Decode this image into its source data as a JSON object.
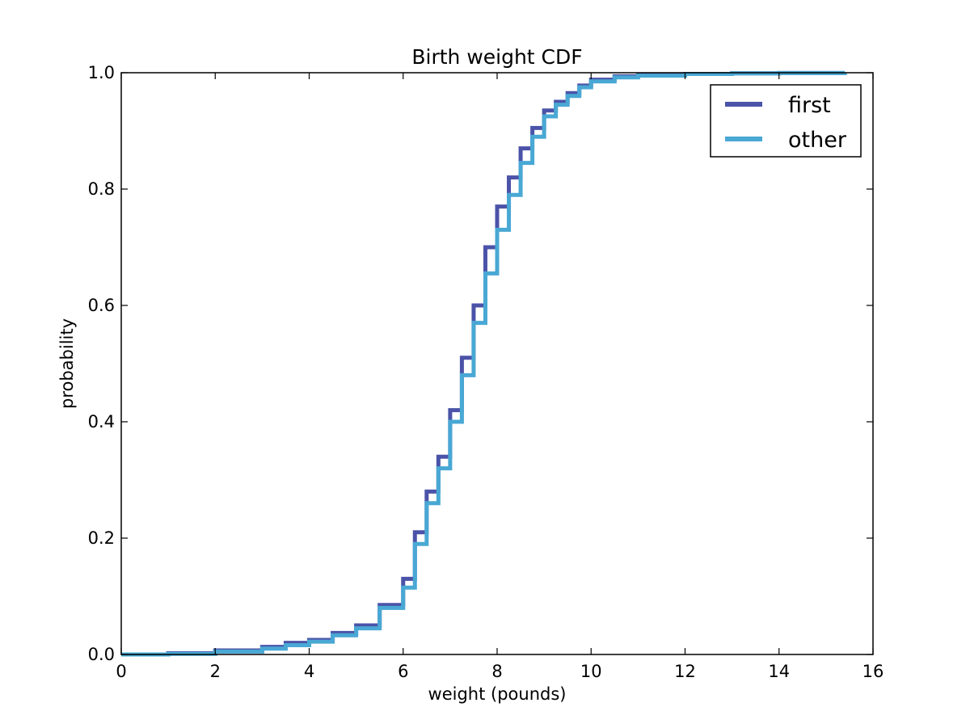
{
  "chart_data": {
    "type": "line",
    "title": "Birth weight CDF",
    "xlabel": "weight (pounds)",
    "ylabel": "probability",
    "xlim": [
      0,
      16
    ],
    "ylim": [
      0,
      1
    ],
    "xticks": [
      "0",
      "2",
      "4",
      "6",
      "8",
      "10",
      "12",
      "14",
      "16"
    ],
    "yticks": [
      "0.0",
      "0.2",
      "0.4",
      "0.6",
      "0.8",
      "1.0"
    ],
    "grid": false,
    "legend_position": "top-right",
    "step": true,
    "series": [
      {
        "name": "first",
        "color": "#4b53a8",
        "points": [
          [
            0.0,
            0.0
          ],
          [
            1.0,
            0.002
          ],
          [
            2.0,
            0.007
          ],
          [
            3.0,
            0.013
          ],
          [
            3.5,
            0.02
          ],
          [
            4.0,
            0.025
          ],
          [
            4.5,
            0.037
          ],
          [
            5.0,
            0.05
          ],
          [
            5.5,
            0.085
          ],
          [
            6.0,
            0.13
          ],
          [
            6.25,
            0.21
          ],
          [
            6.5,
            0.28
          ],
          [
            6.75,
            0.34
          ],
          [
            7.0,
            0.42
          ],
          [
            7.25,
            0.51
          ],
          [
            7.5,
            0.6
          ],
          [
            7.75,
            0.7
          ],
          [
            8.0,
            0.77
          ],
          [
            8.25,
            0.82
          ],
          [
            8.5,
            0.87
          ],
          [
            8.75,
            0.905
          ],
          [
            9.0,
            0.935
          ],
          [
            9.25,
            0.95
          ],
          [
            9.5,
            0.965
          ],
          [
            9.75,
            0.978
          ],
          [
            10.0,
            0.988
          ],
          [
            10.5,
            0.994
          ],
          [
            11.0,
            0.996
          ],
          [
            12.0,
            0.998
          ],
          [
            13.0,
            0.999
          ],
          [
            14.0,
            0.9995
          ],
          [
            15.4,
            1.0
          ]
        ]
      },
      {
        "name": "other",
        "color": "#49a8d4",
        "points": [
          [
            0.0,
            0.0
          ],
          [
            1.0,
            0.001
          ],
          [
            2.0,
            0.005
          ],
          [
            3.0,
            0.01
          ],
          [
            3.5,
            0.016
          ],
          [
            4.0,
            0.022
          ],
          [
            4.5,
            0.033
          ],
          [
            5.0,
            0.045
          ],
          [
            5.5,
            0.08
          ],
          [
            6.0,
            0.115
          ],
          [
            6.25,
            0.19
          ],
          [
            6.5,
            0.26
          ],
          [
            6.75,
            0.32
          ],
          [
            7.0,
            0.4
          ],
          [
            7.25,
            0.48
          ],
          [
            7.5,
            0.57
          ],
          [
            7.75,
            0.655
          ],
          [
            8.0,
            0.73
          ],
          [
            8.25,
            0.79
          ],
          [
            8.5,
            0.845
          ],
          [
            8.75,
            0.89
          ],
          [
            9.0,
            0.925
          ],
          [
            9.25,
            0.945
          ],
          [
            9.5,
            0.96
          ],
          [
            9.75,
            0.975
          ],
          [
            10.0,
            0.985
          ],
          [
            10.5,
            0.992
          ],
          [
            11.0,
            0.995
          ],
          [
            12.0,
            0.998
          ],
          [
            13.0,
            0.999
          ],
          [
            14.0,
            0.9995
          ],
          [
            15.4,
            1.0
          ]
        ]
      }
    ]
  }
}
